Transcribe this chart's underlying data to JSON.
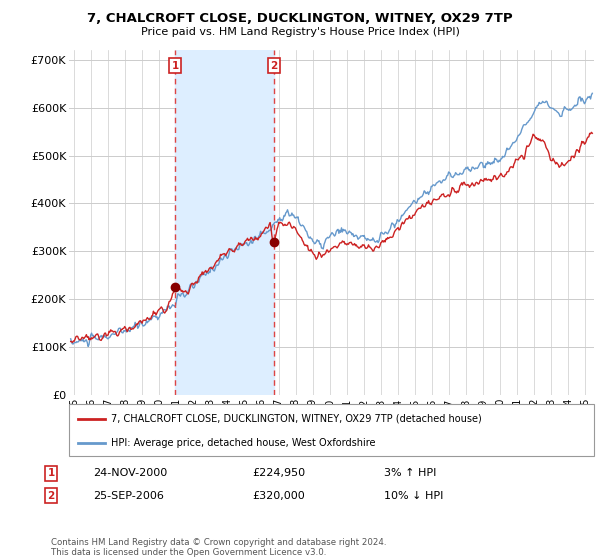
{
  "title": "7, CHALCROFT CLOSE, DUCKLINGTON, WITNEY, OX29 7TP",
  "subtitle": "Price paid vs. HM Land Registry's House Price Index (HPI)",
  "ylabel_ticks": [
    "£0",
    "£100K",
    "£200K",
    "£300K",
    "£400K",
    "£500K",
    "£600K",
    "£700K"
  ],
  "ytick_values": [
    0,
    100000,
    200000,
    300000,
    400000,
    500000,
    600000,
    700000
  ],
  "ylim": [
    0,
    720000
  ],
  "xlim_start": 1994.7,
  "xlim_end": 2025.5,
  "xtick_years": [
    1995,
    1996,
    1997,
    1998,
    1999,
    2000,
    2001,
    2002,
    2003,
    2004,
    2005,
    2006,
    2007,
    2008,
    2009,
    2010,
    2011,
    2012,
    2013,
    2014,
    2015,
    2016,
    2017,
    2018,
    2019,
    2020,
    2021,
    2022,
    2023,
    2024,
    2025
  ],
  "sale1_x": 2000.92,
  "sale1_y": 224950,
  "sale1_label": "24-NOV-2000",
  "sale1_price": "£224,950",
  "sale1_hpi": "3% ↑ HPI",
  "sale2_x": 2006.73,
  "sale2_y": 320000,
  "sale2_label": "25-SEP-2006",
  "sale2_price": "£320,000",
  "sale2_hpi": "10% ↓ HPI",
  "vline_color": "#dd4444",
  "shade_color": "#ddeeff",
  "hpi_color": "#6699cc",
  "price_color": "#cc2222",
  "dot_color": "#880000",
  "legend_label_price": "7, CHALCROFT CLOSE, DUCKLINGTON, WITNEY, OX29 7TP (detached house)",
  "legend_label_hpi": "HPI: Average price, detached house, West Oxfordshire",
  "footnote": "Contains HM Land Registry data © Crown copyright and database right 2024.\nThis data is licensed under the Open Government Licence v3.0.",
  "bg_color": "#ffffff",
  "grid_color": "#cccccc",
  "number_box_color": "#cc2222"
}
